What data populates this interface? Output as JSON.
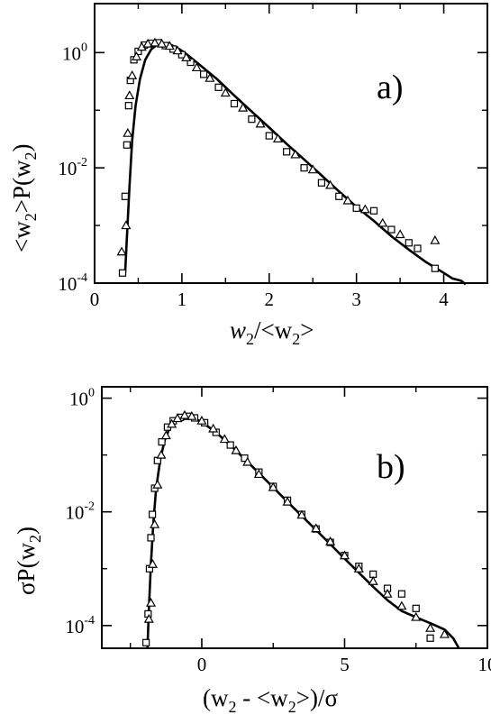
{
  "chart_data": [
    {
      "type": "scatter",
      "panel_label": "a)",
      "xlabel": {
        "main": "w",
        "sub": "2",
        "rest": "/<w",
        "sub2": "2",
        "end": ">"
      },
      "ylabel": {
        "a": "<w",
        "sub": "2",
        "b": ">P(w",
        "sub2": "2",
        "c": ")"
      },
      "xlim": [
        0,
        4.5
      ],
      "ylim_log10": [
        -4,
        0.85
      ],
      "yscale": "log",
      "x_ticks": [
        0,
        1,
        2,
        3,
        4
      ],
      "x_tick_labels": [
        "0",
        "1",
        "2",
        "3",
        "4"
      ],
      "y_ticks_log10": [
        -4,
        -2,
        0
      ],
      "y_tick_labels": [
        {
          "base": "10",
          "exp": "-4"
        },
        {
          "base": "10",
          "exp": "-2"
        },
        {
          "base": "10",
          "exp": "0"
        }
      ],
      "grid": false,
      "series": [
        {
          "marker": "line",
          "x": [
            0.35,
            0.37,
            0.4,
            0.43,
            0.47,
            0.52,
            0.58,
            0.65,
            0.72,
            0.8,
            0.88,
            0.97,
            1.06,
            1.2,
            1.4,
            1.6,
            1.8,
            2.0,
            2.2,
            2.4,
            2.6,
            2.8,
            3.0,
            3.2,
            3.4,
            3.6,
            3.8,
            4.0,
            4.1,
            4.2,
            4.25
          ],
          "y": [
            0.00015,
            0.0006,
            0.005,
            0.03,
            0.12,
            0.35,
            0.75,
            1.15,
            1.38,
            1.42,
            1.35,
            1.15,
            0.92,
            0.62,
            0.35,
            0.18,
            0.095,
            0.05,
            0.026,
            0.014,
            0.0074,
            0.0039,
            0.0021,
            0.0012,
            0.00065,
            0.00038,
            0.00023,
            0.00015,
            0.00012,
            0.00011,
            9.5e-05
          ]
        },
        {
          "marker": "square",
          "x": [
            0.32,
            0.35,
            0.37,
            0.39,
            0.41,
            0.45,
            0.5,
            0.57,
            0.65,
            0.73,
            0.81,
            0.9,
            1.0,
            1.1,
            1.25,
            1.42,
            1.6,
            1.8,
            2.0,
            2.2,
            2.4,
            2.6,
            2.8,
            3.0,
            3.2,
            3.4,
            3.6,
            3.7,
            3.9
          ],
          "y": [
            0.00015,
            0.0032,
            0.025,
            0.12,
            0.33,
            0.75,
            1.05,
            1.35,
            1.45,
            1.48,
            1.32,
            1.15,
            0.92,
            0.68,
            0.42,
            0.25,
            0.13,
            0.07,
            0.036,
            0.019,
            0.01,
            0.0055,
            0.0032,
            0.002,
            0.0018,
            0.00085,
            0.0005,
            0.0004,
            0.00018
          ]
        },
        {
          "marker": "triangle",
          "x": [
            0.31,
            0.36,
            0.38,
            0.4,
            0.43,
            0.48,
            0.54,
            0.61,
            0.69,
            0.77,
            0.86,
            0.95,
            1.05,
            1.17,
            1.32,
            1.5,
            1.7,
            1.9,
            2.1,
            2.3,
            2.5,
            2.7,
            2.9,
            3.1,
            3.3,
            3.5,
            3.9
          ],
          "y": [
            0.00035,
            0.001,
            0.04,
            0.18,
            0.4,
            0.85,
            1.25,
            1.42,
            1.48,
            1.42,
            1.3,
            1.08,
            0.82,
            0.55,
            0.36,
            0.2,
            0.11,
            0.058,
            0.032,
            0.017,
            0.0093,
            0.005,
            0.0027,
            0.0019,
            0.0011,
            0.0007,
            0.00055
          ]
        }
      ]
    },
    {
      "type": "scatter",
      "panel_label": "b)",
      "xlabel": {
        "a": "(w",
        "sub": "2",
        "b": " - <w",
        "sub2": "2",
        "c": ">)/σ"
      },
      "ylabel": {
        "a": "σP(w",
        "sub": "2",
        "c": ")"
      },
      "xlim": [
        -3.5,
        10
      ],
      "ylim_log10": [
        -4.4,
        0.2
      ],
      "yscale": "log",
      "x_ticks": [
        0,
        5,
        10
      ],
      "x_tick_labels": [
        "0",
        "5",
        "10"
      ],
      "y_ticks_log10": [
        -4,
        -2,
        0
      ],
      "y_tick_labels": [
        {
          "base": "10",
          "exp": "-4"
        },
        {
          "base": "10",
          "exp": "-2"
        },
        {
          "base": "10",
          "exp": "0"
        }
      ],
      "grid": false,
      "series": [
        {
          "marker": "line",
          "x": [
            -1.9,
            -1.85,
            -1.78,
            -1.7,
            -1.6,
            -1.45,
            -1.3,
            -1.1,
            -0.9,
            -0.6,
            -0.3,
            0.0,
            0.5,
            1.0,
            1.5,
            2.0,
            2.5,
            3.0,
            3.5,
            4.0,
            4.5,
            5.0,
            5.5,
            6.0,
            6.5,
            7.0,
            7.5,
            8.0,
            8.5,
            8.8,
            9.0
          ],
          "y": [
            4e-05,
            0.0002,
            0.0012,
            0.006,
            0.025,
            0.085,
            0.18,
            0.32,
            0.42,
            0.48,
            0.45,
            0.38,
            0.25,
            0.15,
            0.085,
            0.048,
            0.027,
            0.015,
            0.0085,
            0.0048,
            0.0027,
            0.0015,
            0.00085,
            0.00048,
            0.00028,
            0.00018,
            0.00014,
            0.00011,
            8.5e-05,
            6e-05,
            4e-05
          ]
        },
        {
          "marker": "square",
          "x": [
            -1.95,
            -1.88,
            -1.83,
            -1.78,
            -1.73,
            -1.65,
            -1.55,
            -1.4,
            -1.2,
            -1.0,
            -0.75,
            -0.5,
            -0.25,
            0.1,
            0.5,
            1.0,
            1.5,
            2.0,
            2.5,
            3.0,
            3.5,
            4.0,
            4.5,
            5.0,
            5.5,
            6.0,
            6.5,
            7.0,
            7.5,
            8.0
          ],
          "y": [
            5e-05,
            0.00016,
            0.001,
            0.0035,
            0.009,
            0.026,
            0.08,
            0.17,
            0.31,
            0.4,
            0.46,
            0.48,
            0.45,
            0.37,
            0.25,
            0.15,
            0.088,
            0.05,
            0.028,
            0.016,
            0.009,
            0.005,
            0.0029,
            0.0017,
            0.0011,
            0.0008,
            0.00045,
            0.00036,
            0.0002,
            6e-05
          ]
        },
        {
          "marker": "triangle",
          "x": [
            -1.85,
            -1.78,
            -1.72,
            -1.65,
            -1.55,
            -1.42,
            -1.25,
            -1.05,
            -0.85,
            -0.6,
            -0.35,
            0.0,
            0.4,
            0.8,
            1.2,
            1.6,
            2.0,
            2.5,
            3.0,
            3.5,
            4.0,
            4.5,
            5.0,
            5.5,
            6.0,
            6.5,
            7.0,
            7.5,
            8.0,
            8.5
          ],
          "y": [
            0.00013,
            0.00025,
            0.0012,
            0.006,
            0.03,
            0.1,
            0.22,
            0.35,
            0.44,
            0.5,
            0.48,
            0.4,
            0.29,
            0.19,
            0.12,
            0.075,
            0.046,
            0.027,
            0.015,
            0.0088,
            0.0051,
            0.003,
            0.0017,
            0.001,
            0.0006,
            0.00036,
            0.00022,
            0.00014,
            9e-05,
            7e-05
          ]
        }
      ]
    }
  ]
}
